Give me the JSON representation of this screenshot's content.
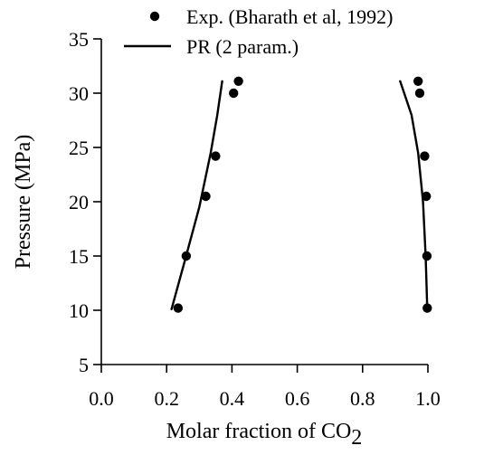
{
  "chart_data": {
    "type": "scatter",
    "xlabel": "Molar fraction of CO",
    "xlabel_subscript": "2",
    "ylabel": "Pressure (MPa)",
    "xlim": [
      0.0,
      1.0
    ],
    "ylim": [
      5,
      35
    ],
    "x_ticks": [
      0.0,
      0.2,
      0.4,
      0.6,
      0.8,
      1.0
    ],
    "x_tick_labels": [
      "0.0",
      "0.2",
      "0.4",
      "0.6",
      "0.8",
      "1.0"
    ],
    "y_ticks": [
      5,
      10,
      15,
      20,
      25,
      30,
      35
    ],
    "y_tick_labels": [
      "5",
      "10",
      "15",
      "20",
      "25",
      "30",
      "35"
    ],
    "grid": false,
    "legend_position": "top-right",
    "colors": {
      "marker": "#000000",
      "line": "#000000"
    },
    "series": [
      {
        "name": "Exp. (Bharath et al, 1992)",
        "kind": "scatter",
        "points": [
          {
            "x": 0.235,
            "y": 10.2
          },
          {
            "x": 0.26,
            "y": 15.0
          },
          {
            "x": 0.32,
            "y": 20.5
          },
          {
            "x": 0.35,
            "y": 24.2
          },
          {
            "x": 0.405,
            "y": 30.0
          },
          {
            "x": 0.42,
            "y": 31.1
          },
          {
            "x": 0.998,
            "y": 10.2
          },
          {
            "x": 0.997,
            "y": 15.0
          },
          {
            "x": 0.995,
            "y": 20.5
          },
          {
            "x": 0.99,
            "y": 24.2
          },
          {
            "x": 0.975,
            "y": 30.0
          },
          {
            "x": 0.97,
            "y": 31.1
          }
        ]
      },
      {
        "name": "PR (2 param.)",
        "kind": "line",
        "segments": [
          [
            {
              "x": 0.215,
              "y": 10.1
            },
            {
              "x": 0.255,
              "y": 14.5
            },
            {
              "x": 0.3,
              "y": 19.5
            },
            {
              "x": 0.335,
              "y": 24.5
            },
            {
              "x": 0.355,
              "y": 28.0
            },
            {
              "x": 0.37,
              "y": 31.1
            }
          ],
          [
            {
              "x": 0.998,
              "y": 10.1
            },
            {
              "x": 0.993,
              "y": 15.0
            },
            {
              "x": 0.985,
              "y": 20.0
            },
            {
              "x": 0.97,
              "y": 24.5
            },
            {
              "x": 0.95,
              "y": 28.0
            },
            {
              "x": 0.915,
              "y": 31.1
            }
          ]
        ]
      }
    ]
  }
}
